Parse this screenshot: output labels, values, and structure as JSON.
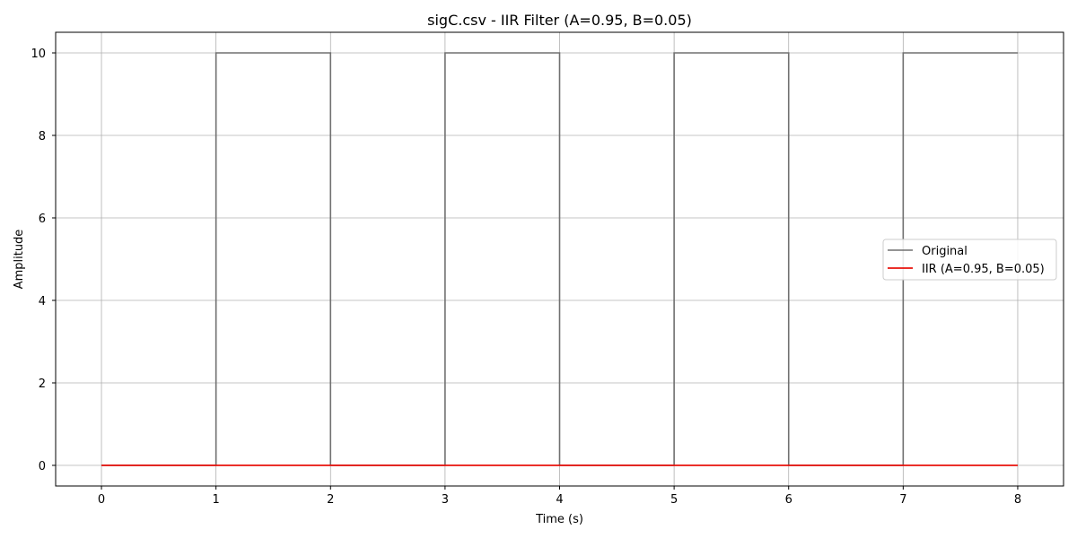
{
  "chart_data": {
    "type": "line",
    "title": "sigC.csv - IIR Filter (A=0.95, B=0.05)",
    "xlabel": "Time (s)",
    "ylabel": "Amplitude",
    "xlim": [
      -0.4,
      8.4
    ],
    "ylim": [
      -0.5,
      10.5
    ],
    "xticks": [
      0,
      1,
      2,
      3,
      4,
      5,
      6,
      7,
      8
    ],
    "yticks": [
      0,
      2,
      4,
      6,
      8,
      10
    ],
    "grid": true,
    "legend_position": "center-right",
    "series": [
      {
        "name": "Original",
        "color": "#707070",
        "x": [
          0,
          1,
          1,
          2,
          2,
          3,
          3,
          4,
          4,
          5,
          5,
          6,
          6,
          7,
          7,
          8
        ],
        "y": [
          0,
          0,
          10,
          10,
          0,
          0,
          10,
          10,
          0,
          0,
          10,
          10,
          0,
          0,
          10,
          10
        ]
      },
      {
        "name": "IIR (A=0.95, B=0.05)",
        "color": "#e8120c",
        "x": [
          0,
          8
        ],
        "y": [
          0,
          0
        ]
      }
    ]
  }
}
